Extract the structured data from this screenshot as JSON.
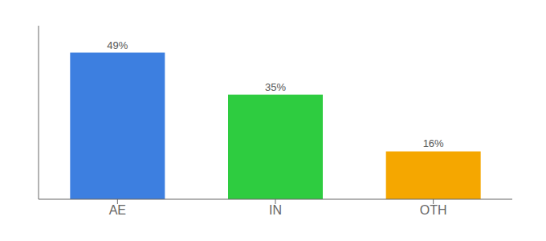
{
  "chart_data": {
    "type": "bar",
    "categories": [
      "AE",
      "IN",
      "OTH"
    ],
    "values": [
      49,
      35,
      16
    ],
    "value_labels": [
      "49%",
      "35%",
      "16%"
    ],
    "colors": [
      "#3d7fe0",
      "#2ecc40",
      "#f5a700"
    ],
    "ylim": [
      0,
      58
    ],
    "data_labels": true,
    "tick_labels": "x"
  }
}
